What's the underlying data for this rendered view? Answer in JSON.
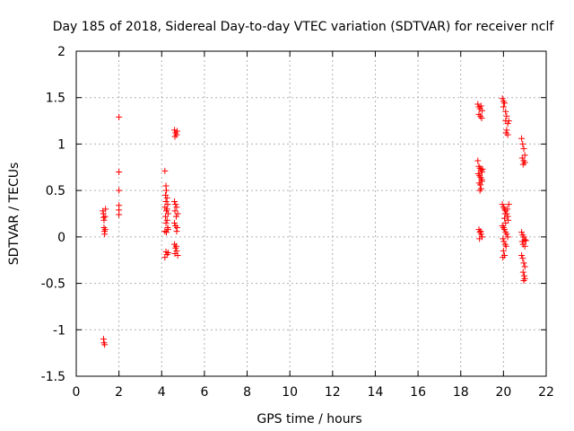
{
  "chart_data": {
    "type": "scatter",
    "title": "Day 185 of 2018, Sidereal Day-to-day VTEC variation (SDTVAR) for receiver nclf",
    "xlabel": "GPS time / hours",
    "ylabel": "SDTVAR / TECUs",
    "xlim": [
      0,
      22
    ],
    "ylim": [
      -1.5,
      2
    ],
    "xticks": [
      0,
      2,
      4,
      6,
      8,
      10,
      12,
      14,
      16,
      18,
      20,
      22
    ],
    "yticks": [
      -1.5,
      -1,
      -0.5,
      0,
      0.5,
      1,
      1.5,
      2
    ],
    "xtick_labels": [
      "0",
      "2",
      "4",
      "6",
      "8",
      "10",
      "12",
      "14",
      "16",
      "18",
      "20",
      "22"
    ],
    "ytick_labels": [
      "-1.5",
      "-1",
      "-0.5",
      "0",
      "0.5",
      "1",
      "1.5",
      "2"
    ],
    "grid": true,
    "marker": "+",
    "color": "#ff0000",
    "series": [
      {
        "name": "SDTVAR",
        "points": [
          [
            1.25,
            0.28
          ],
          [
            1.27,
            0.25
          ],
          [
            1.28,
            0.21
          ],
          [
            1.3,
            0.18
          ],
          [
            1.3,
            0.1
          ],
          [
            1.32,
            0.06
          ],
          [
            1.33,
            0.03
          ],
          [
            1.35,
            0.22
          ],
          [
            1.36,
            0.08
          ],
          [
            1.37,
            0.3
          ],
          [
            1.28,
            -1.1
          ],
          [
            1.3,
            -1.14
          ],
          [
            1.33,
            -1.16
          ],
          [
            2.0,
            1.29
          ],
          [
            2.0,
            0.7
          ],
          [
            2.0,
            0.5
          ],
          [
            2.0,
            0.34
          ],
          [
            2.0,
            0.29
          ],
          [
            2.0,
            0.24
          ],
          [
            4.15,
            0.71
          ],
          [
            4.2,
            0.55
          ],
          [
            4.22,
            0.5
          ],
          [
            4.18,
            0.45
          ],
          [
            4.25,
            0.42
          ],
          [
            4.2,
            0.38
          ],
          [
            4.28,
            0.35
          ],
          [
            4.15,
            0.32
          ],
          [
            4.22,
            0.28
          ],
          [
            4.3,
            0.25
          ],
          [
            4.18,
            0.22
          ],
          [
            4.25,
            0.18
          ],
          [
            4.2,
            0.15
          ],
          [
            4.28,
            0.1
          ],
          [
            4.15,
            0.06
          ],
          [
            4.22,
            0.05
          ],
          [
            4.3,
            0.08
          ],
          [
            4.25,
            0.3
          ],
          [
            4.2,
            -0.16
          ],
          [
            4.25,
            -0.19
          ],
          [
            4.15,
            -0.22
          ],
          [
            4.3,
            -0.17
          ],
          [
            4.6,
            1.15
          ],
          [
            4.65,
            1.12
          ],
          [
            4.7,
            1.1
          ],
          [
            4.62,
            1.08
          ],
          [
            4.72,
            1.14
          ],
          [
            4.6,
            0.38
          ],
          [
            4.65,
            0.35
          ],
          [
            4.7,
            0.32
          ],
          [
            4.62,
            0.28
          ],
          [
            4.75,
            0.25
          ],
          [
            4.68,
            0.22
          ],
          [
            4.6,
            0.15
          ],
          [
            4.65,
            0.12
          ],
          [
            4.72,
            0.1
          ],
          [
            4.7,
            0.06
          ],
          [
            4.6,
            -0.08
          ],
          [
            4.65,
            -0.12
          ],
          [
            4.7,
            -0.15
          ],
          [
            4.62,
            -0.18
          ],
          [
            4.75,
            -0.2
          ],
          [
            4.68,
            -0.1
          ],
          [
            18.8,
            1.43
          ],
          [
            18.85,
            1.4
          ],
          [
            18.9,
            1.38
          ],
          [
            18.95,
            1.41
          ],
          [
            19.0,
            1.36
          ],
          [
            18.85,
            1.32
          ],
          [
            18.92,
            1.3
          ],
          [
            18.98,
            1.28
          ],
          [
            18.8,
            0.82
          ],
          [
            18.85,
            0.76
          ],
          [
            18.9,
            0.74
          ],
          [
            18.95,
            0.72
          ],
          [
            19.0,
            0.7
          ],
          [
            18.82,
            0.68
          ],
          [
            18.88,
            0.66
          ],
          [
            18.93,
            0.64
          ],
          [
            18.97,
            0.62
          ],
          [
            19.0,
            0.6
          ],
          [
            18.86,
            0.58
          ],
          [
            18.92,
            0.56
          ],
          [
            18.95,
            0.52
          ],
          [
            18.9,
            0.5
          ],
          [
            19.02,
            0.73
          ],
          [
            18.85,
            0.08
          ],
          [
            18.9,
            0.05
          ],
          [
            18.95,
            0.03
          ],
          [
            19.0,
            0.0
          ],
          [
            18.88,
            -0.02
          ],
          [
            18.93,
            0.06
          ],
          [
            19.95,
            1.49
          ],
          [
            20.0,
            1.46
          ],
          [
            20.05,
            1.44
          ],
          [
            20.0,
            1.4
          ],
          [
            20.1,
            1.35
          ],
          [
            20.15,
            1.3
          ],
          [
            20.1,
            1.25
          ],
          [
            20.2,
            1.22
          ],
          [
            20.15,
            1.15
          ],
          [
            20.2,
            1.1
          ],
          [
            20.25,
            1.25
          ],
          [
            20.12,
            1.12
          ],
          [
            19.95,
            0.35
          ],
          [
            20.0,
            0.32
          ],
          [
            20.05,
            0.3
          ],
          [
            20.1,
            0.28
          ],
          [
            20.15,
            0.25
          ],
          [
            20.2,
            0.22
          ],
          [
            20.25,
            0.35
          ],
          [
            20.05,
            0.2
          ],
          [
            20.1,
            0.15
          ],
          [
            19.95,
            0.12
          ],
          [
            20.0,
            0.1
          ],
          [
            20.05,
            0.08
          ],
          [
            20.1,
            0.05
          ],
          [
            20.15,
            0.03
          ],
          [
            20.2,
            0.0
          ],
          [
            19.98,
            -0.02
          ],
          [
            20.02,
            -0.05
          ],
          [
            20.08,
            -0.08
          ],
          [
            20.12,
            -0.1
          ],
          [
            20.0,
            -0.15
          ],
          [
            20.05,
            -0.2
          ],
          [
            19.97,
            -0.22
          ],
          [
            20.18,
            0.3
          ],
          [
            20.22,
            0.18
          ],
          [
            20.08,
            0.25
          ],
          [
            20.85,
            1.06
          ],
          [
            20.9,
            1.0
          ],
          [
            20.95,
            0.95
          ],
          [
            21.0,
            0.88
          ],
          [
            20.88,
            0.85
          ],
          [
            20.95,
            0.82
          ],
          [
            21.0,
            0.8
          ],
          [
            20.92,
            0.78
          ],
          [
            20.85,
            0.05
          ],
          [
            20.9,
            0.02
          ],
          [
            20.95,
            0.0
          ],
          [
            21.0,
            -0.03
          ],
          [
            20.88,
            -0.05
          ],
          [
            20.92,
            -0.08
          ],
          [
            21.0,
            -0.1
          ],
          [
            21.05,
            -0.04
          ],
          [
            20.85,
            -0.2
          ],
          [
            20.9,
            -0.23
          ],
          [
            20.95,
            -0.28
          ],
          [
            21.0,
            -0.32
          ],
          [
            20.92,
            -0.38
          ],
          [
            20.97,
            -0.42
          ],
          [
            21.0,
            -0.45
          ],
          [
            20.95,
            -0.47
          ]
        ]
      }
    ]
  }
}
